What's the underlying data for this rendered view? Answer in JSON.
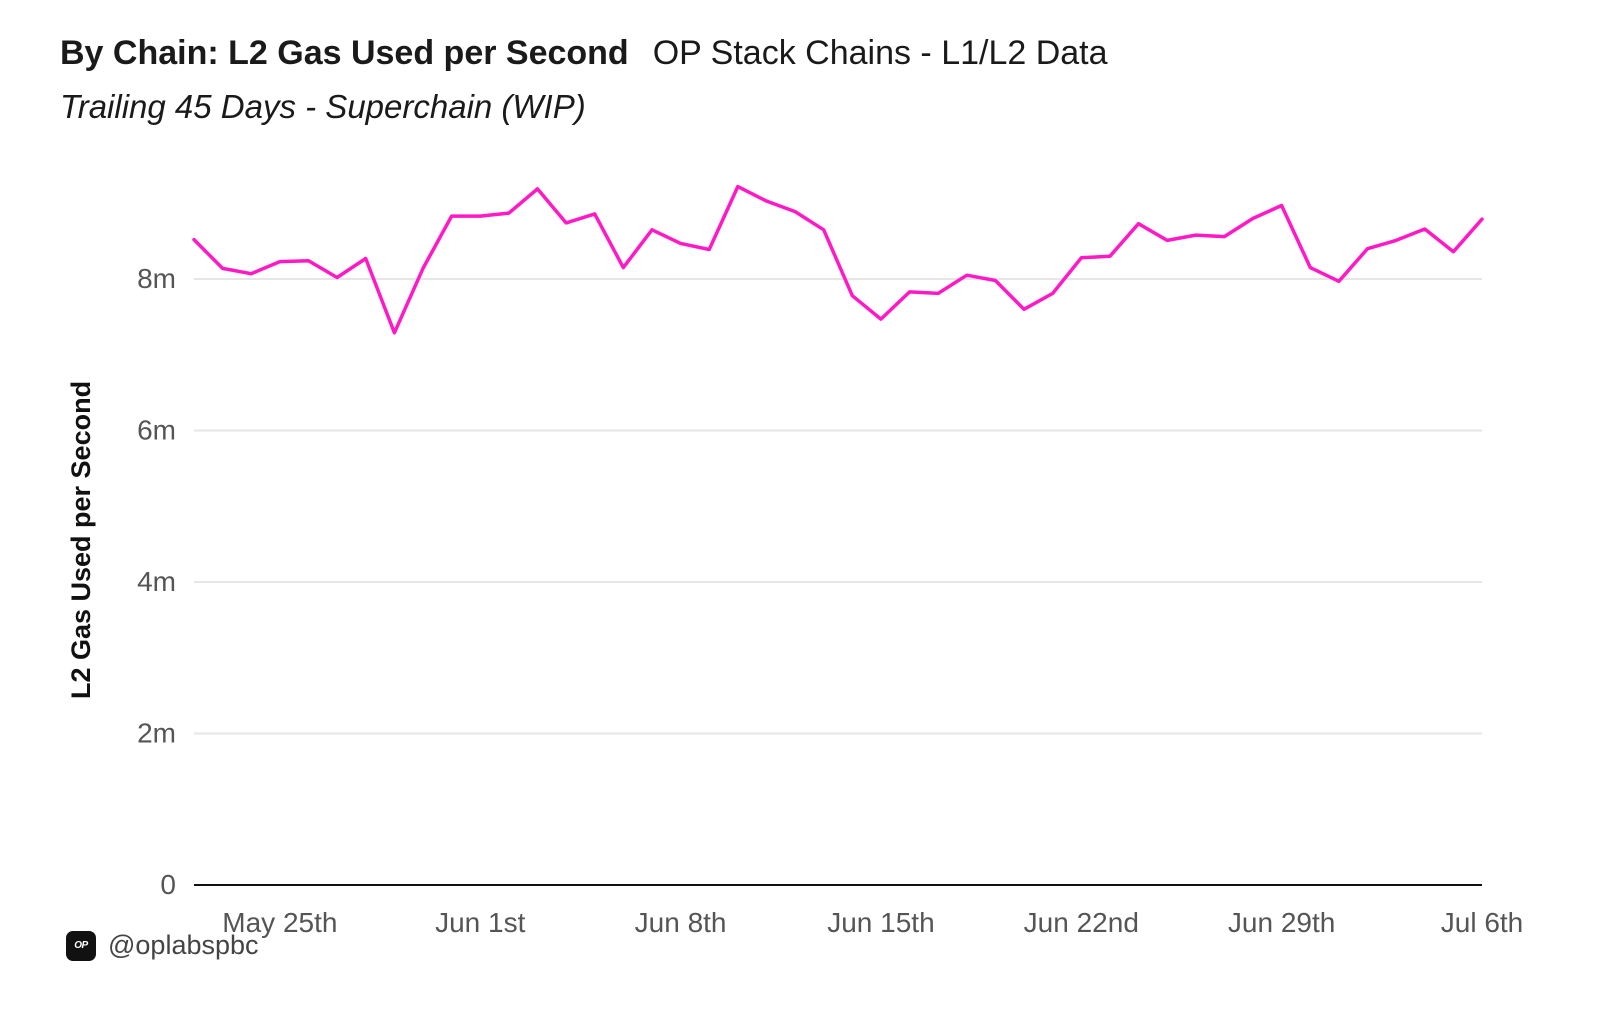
{
  "header": {
    "title": "By Chain: L2 Gas Used per Second",
    "source": "OP Stack Chains - L1/L2 Data",
    "subtitle": "Trailing 45 Days - Superchain (WIP)"
  },
  "footer": {
    "logo_text": "OP",
    "handle": "@oplabspbc"
  },
  "colors": {
    "line": "#ff1ac6",
    "grid": "#e6e6e6",
    "axis": "#111111"
  },
  "chart_data": {
    "type": "line",
    "title": "By Chain: L2 Gas Used per Second",
    "subtitle": "Trailing 45 Days - Superchain (WIP)",
    "xlabel": "",
    "ylabel": "L2 Gas Used per Second",
    "ylim": [
      0,
      9000000
    ],
    "yticks": [
      0,
      2000000,
      4000000,
      6000000,
      8000000
    ],
    "ytick_labels": [
      "0",
      "2m",
      "4m",
      "6m",
      "8m"
    ],
    "xticks": [
      "2023-05-25",
      "2023-06-01",
      "2023-06-08",
      "2023-06-15",
      "2023-06-22",
      "2023-06-29",
      "2023-07-06"
    ],
    "xtick_labels": [
      "May 25th",
      "Jun 1st",
      "Jun 8th",
      "Jun 15th",
      "Jun 22nd",
      "Jun 29th",
      "Jul 6th"
    ],
    "grid": true,
    "legend": false,
    "series": [
      {
        "x": [
          "2023-05-22",
          "2023-05-23",
          "2023-05-24",
          "2023-05-25",
          "2023-05-26",
          "2023-05-27",
          "2023-05-28",
          "2023-05-29",
          "2023-05-30",
          "2023-05-31",
          "2023-06-01",
          "2023-06-02",
          "2023-06-03",
          "2023-06-04",
          "2023-06-05",
          "2023-06-06",
          "2023-06-07",
          "2023-06-08",
          "2023-06-09",
          "2023-06-10",
          "2023-06-11",
          "2023-06-12",
          "2023-06-13",
          "2023-06-14",
          "2023-06-15",
          "2023-06-16",
          "2023-06-17",
          "2023-06-18",
          "2023-06-19",
          "2023-06-20",
          "2023-06-21",
          "2023-06-22",
          "2023-06-23",
          "2023-06-24",
          "2023-06-25",
          "2023-06-26",
          "2023-06-27",
          "2023-06-28",
          "2023-06-29",
          "2023-06-30",
          "2023-07-01",
          "2023-07-02",
          "2023-07-03",
          "2023-07-04",
          "2023-07-05",
          "2023-07-06"
        ],
        "values": [
          8520000,
          8140000,
          8070000,
          8230000,
          8240000,
          8020000,
          8270000,
          7290000,
          8140000,
          8830000,
          8830000,
          8870000,
          9190000,
          8740000,
          8860000,
          8150000,
          8650000,
          8470000,
          8390000,
          9220000,
          9030000,
          8890000,
          8650000,
          7780000,
          7470000,
          7830000,
          7810000,
          8050000,
          7980000,
          7600000,
          7810000,
          8280000,
          8300000,
          8730000,
          8510000,
          8580000,
          8560000,
          8800000,
          8970000,
          8150000,
          7970000,
          8400000,
          8510000,
          8660000,
          8360000,
          8790000
        ]
      }
    ]
  }
}
